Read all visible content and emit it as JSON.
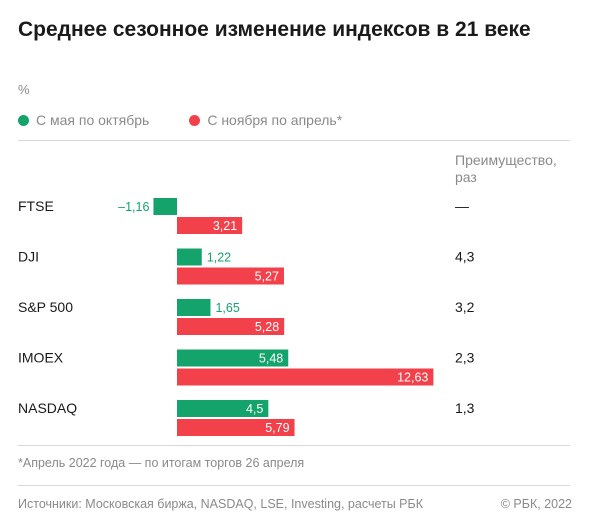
{
  "title": "Среднее сезонное изменение индексов в 21 веке",
  "unit": "%",
  "legend": [
    {
      "label": "С мая по октябрь",
      "color": "#14a36b"
    },
    {
      "label": "С ноября по апрель*",
      "color": "#f2414b"
    }
  ],
  "advantage_header": "Преимущество, раз",
  "note": "*Апрель 2022 года — по итогам торгов 26 апреля",
  "source": "Источники: Московская биржа, NASDAQ, LSE, Investing, расчеты РБК",
  "copyright": "© РБК, 2022",
  "colors": {
    "positive_label_green": "#14a36b",
    "white_label": "#ffffff"
  },
  "chart_data": {
    "type": "bar",
    "orientation": "horizontal",
    "categories": [
      "FTSE",
      "DJI",
      "S&P 500",
      "IMOEX",
      "NASDAQ"
    ],
    "series": [
      {
        "name": "С мая по октябрь",
        "color": "#14a36b",
        "values": [
          -1.16,
          1.22,
          1.65,
          5.48,
          4.5
        ],
        "labels": [
          "–1,16",
          "1,22",
          "1,65",
          "5,48",
          "4,5"
        ]
      },
      {
        "name": "С ноября по апрель*",
        "color": "#f2414b",
        "values": [
          3.21,
          5.27,
          5.28,
          12.63,
          5.79
        ],
        "labels": [
          "3,21",
          "5,27",
          "5,28",
          "12,63",
          "5,79"
        ]
      }
    ],
    "advantage": [
      "—",
      "4,3",
      "3,2",
      "2,3",
      "1,3"
    ]
  }
}
